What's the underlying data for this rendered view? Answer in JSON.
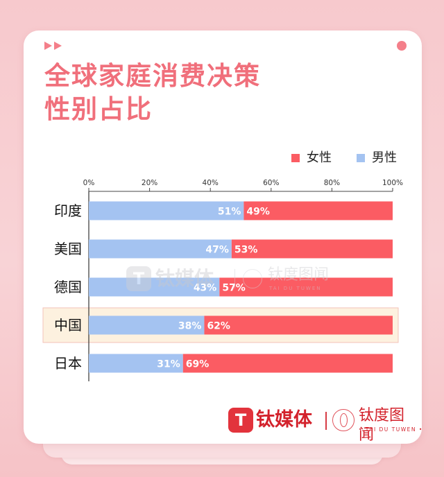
{
  "header": {
    "title_line1": "全球家庭消费决策",
    "title_line2": "性别占比"
  },
  "icons": {
    "top_left": "play-arrows-icon",
    "top_right": "dot-icon"
  },
  "watermark": {
    "brand": "钛媒体",
    "sub_brand": "钛度图闻",
    "sub_brand_en": "TAI DU TUWEN"
  },
  "footer": {
    "brand": "钛媒体",
    "sub_brand": "钛度图闻",
    "sub_brand_en": "• TAI DU TUWEN •"
  },
  "chart_data": {
    "type": "bar",
    "orientation": "horizontal",
    "stacked": true,
    "title": "全球家庭消费决策性别占比",
    "categories": [
      "印度",
      "美国",
      "德国",
      "中国",
      "日本"
    ],
    "series": [
      {
        "name": "男性",
        "color": "#a4c3f1",
        "values": [
          51,
          47,
          43,
          38,
          31
        ]
      },
      {
        "name": "女性",
        "color": "#fb5c63",
        "values": [
          49,
          53,
          57,
          62,
          69
        ]
      }
    ],
    "legend_order": [
      "女性",
      "男性"
    ],
    "legend_position": "top-right",
    "x_ticks": [
      "0%",
      "20%",
      "40%",
      "60%",
      "80%",
      "100%"
    ],
    "xlim": [
      0,
      100
    ],
    "value_suffix": "%",
    "highlight_category": "中国",
    "highlight_color": "#fdf1df",
    "grid": false
  }
}
